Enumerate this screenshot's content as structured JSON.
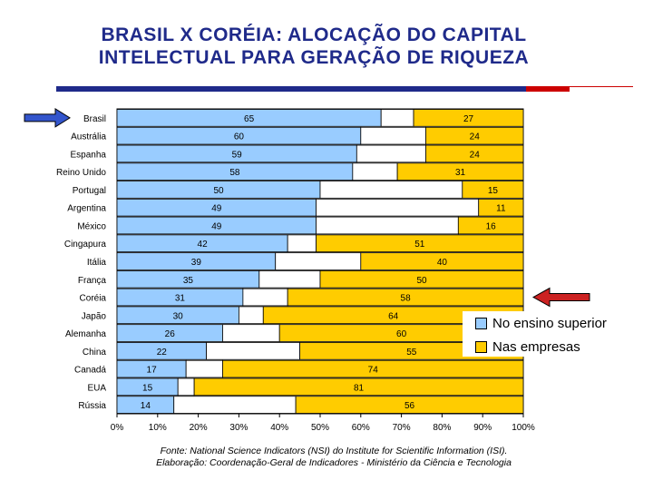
{
  "title_line1": "BRASIL X CORÉIA: ALOCAÇÃO DO CAPITAL",
  "title_line2": "INTELECTUAL PARA GERAÇÃO DE RIQUEZA",
  "footnote_line1": "Fonte: National Science Indicators (NSI) do Institute for Scientific Information (ISI).",
  "footnote_line2": "Elaboração: Coordenação-Geral de Indicadores - Ministério da Ciência e Tecnologia",
  "colors": {
    "title": "#1f2a8a",
    "ensino": "#99ccff",
    "gap": "#ffffff",
    "empresas": "#ffcc00",
    "arrow_blue": "#3355cc",
    "arrow_red": "#cc2222"
  },
  "chart_data": {
    "type": "bar",
    "orientation": "horizontal",
    "stacked": true,
    "categories": [
      "Brasil",
      "Austrália",
      "Espanha",
      "Reino Unido",
      "Portugal",
      "Argentina",
      "México",
      "Cingapura",
      "Itália",
      "França",
      "Coréia",
      "Japão",
      "Alemanha",
      "China",
      "Canadá",
      "EUA",
      "Rússia"
    ],
    "series": [
      {
        "name": "No ensino superior",
        "values": [
          65,
          60,
          59,
          58,
          50,
          49,
          49,
          42,
          39,
          35,
          31,
          30,
          26,
          22,
          17,
          15,
          14
        ]
      },
      {
        "name": "Nas empresas",
        "values": [
          27,
          24,
          24,
          31,
          15,
          11,
          16,
          51,
          40,
          50,
          58,
          64,
          60,
          55,
          74,
          81,
          56
        ]
      }
    ],
    "xlim": [
      0,
      100
    ],
    "x_ticks": [
      "0%",
      "10%",
      "20%",
      "30%",
      "40%",
      "50%",
      "60%",
      "70%",
      "80%",
      "90%",
      "100%"
    ],
    "legend_position": "right",
    "highlighted_categories": [
      "Brasil",
      "Coréia"
    ]
  }
}
